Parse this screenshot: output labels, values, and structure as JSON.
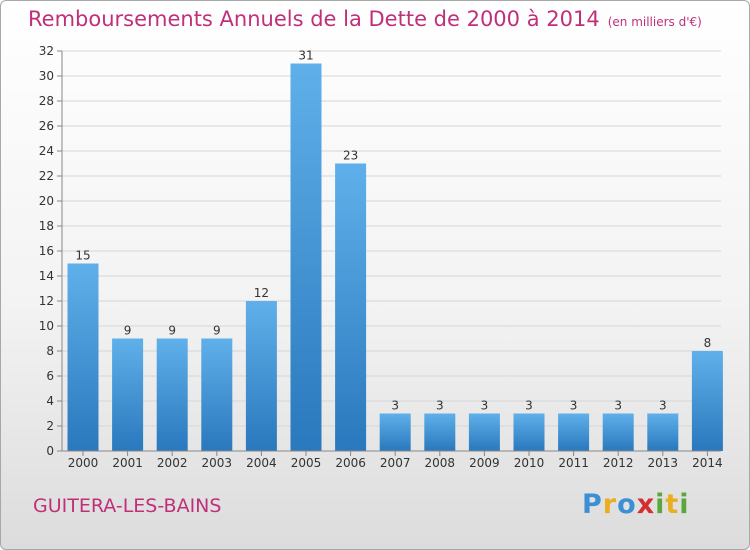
{
  "title": "Remboursements Annuels de la Dette de 2000 à 2014",
  "unit": "(en milliers d'€)",
  "commune": "GUITERA-LES-BAINS",
  "logo": {
    "text": "Proxiti",
    "letters": [
      "P",
      "r",
      "o",
      "x",
      "i",
      "t",
      "i"
    ],
    "colors": [
      "#3b8fd4",
      "#e8b020",
      "#3b8fd4",
      "#d23030",
      "#5aa83c",
      "#e8b020",
      "#5aa83c"
    ]
  },
  "colors": {
    "title": "#c0307a",
    "bar_top": "#5fb0ea",
    "bar_bottom": "#2a78bd",
    "grid": "#d6d6d6"
  },
  "chart_data": {
    "type": "bar",
    "categories": [
      "2000",
      "2001",
      "2002",
      "2003",
      "2004",
      "2005",
      "2006",
      "2007",
      "2008",
      "2009",
      "2010",
      "2011",
      "2012",
      "2013",
      "2014"
    ],
    "values": [
      15,
      9,
      9,
      9,
      12,
      31,
      23,
      3,
      3,
      3,
      3,
      3,
      3,
      3,
      8
    ],
    "ylim": [
      0,
      32
    ],
    "yticks": [
      0,
      2,
      4,
      6,
      8,
      10,
      12,
      14,
      16,
      18,
      20,
      22,
      24,
      26,
      28,
      30,
      32
    ],
    "grid": true
  }
}
